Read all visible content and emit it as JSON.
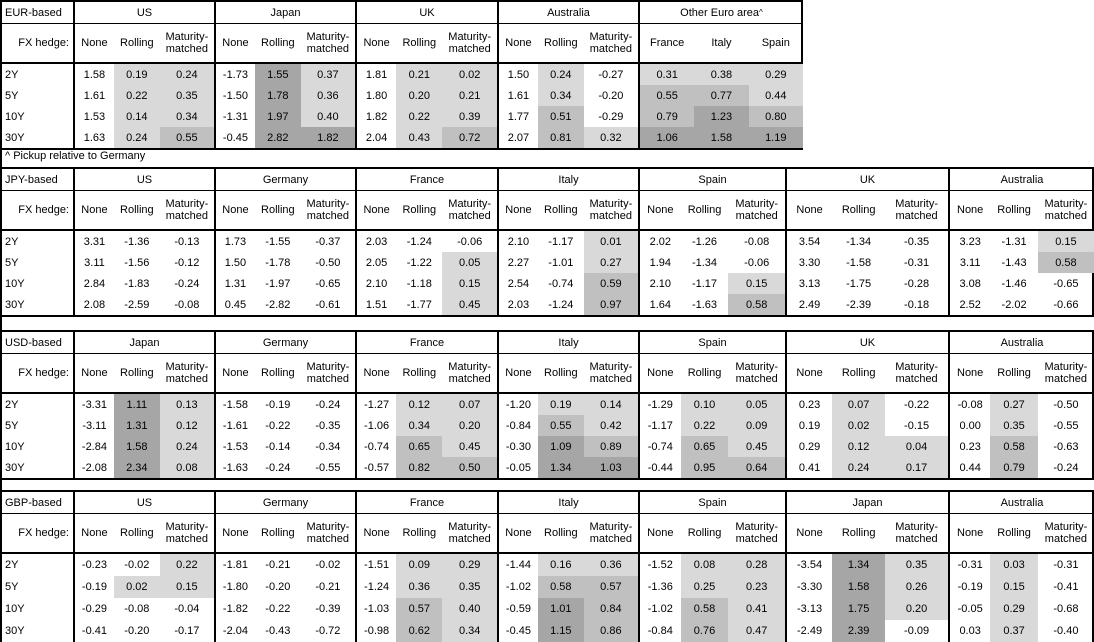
{
  "fx_hedge_label": "FX hedge:",
  "hedge_cols": [
    "None",
    "Rolling",
    "Maturity-matched"
  ],
  "tenors": [
    "2Y",
    "5Y",
    "10Y",
    "30Y"
  ],
  "footnote": "^ Pickup relative to Germany",
  "shading": {
    "light": "#d9d9d9",
    "medium": "#c0c0c0",
    "dark": "#a6a6a6"
  },
  "tables": [
    {
      "base_label": "EUR-based",
      "groups": [
        {
          "name": "US",
          "rows": [
            [
              "1.58",
              "0.19",
              "0.24"
            ],
            [
              "1.61",
              "0.22",
              "0.35"
            ],
            [
              "1.53",
              "0.14",
              "0.34"
            ],
            [
              "1.63",
              "0.24",
              "0.55"
            ]
          ]
        },
        {
          "name": "Japan",
          "rows": [
            [
              "-1.73",
              "1.55",
              "0.37"
            ],
            [
              "-1.50",
              "1.78",
              "0.36"
            ],
            [
              "-1.31",
              "1.97",
              "0.40"
            ],
            [
              "-0.45",
              "2.82",
              "1.82"
            ]
          ]
        },
        {
          "name": "UK",
          "rows": [
            [
              "1.81",
              "0.21",
              "0.02"
            ],
            [
              "1.80",
              "0.20",
              "0.21"
            ],
            [
              "1.82",
              "0.22",
              "0.39"
            ],
            [
              "2.04",
              "0.43",
              "0.72"
            ]
          ]
        },
        {
          "name": "Australia",
          "rows": [
            [
              "1.50",
              "0.24",
              "-0.27"
            ],
            [
              "1.61",
              "0.34",
              "-0.20"
            ],
            [
              "1.77",
              "0.51",
              "-0.29"
            ],
            [
              "2.07",
              "0.81",
              "0.32"
            ]
          ]
        },
        {
          "name": "Other Euro area",
          "sup": "^",
          "cols": [
            "France",
            "Italy",
            "Spain"
          ],
          "rows": [
            [
              "0.31",
              "0.38",
              "0.29"
            ],
            [
              "0.55",
              "0.77",
              "0.44"
            ],
            [
              "0.79",
              "1.23",
              "0.80"
            ],
            [
              "1.06",
              "1.58",
              "1.19"
            ]
          ]
        }
      ]
    },
    {
      "base_label": "JPY-based",
      "groups": [
        {
          "name": "US",
          "rows": [
            [
              "3.31",
              "-1.36",
              "-0.13"
            ],
            [
              "3.11",
              "-1.56",
              "-0.12"
            ],
            [
              "2.84",
              "-1.83",
              "-0.24"
            ],
            [
              "2.08",
              "-2.59",
              "-0.08"
            ]
          ]
        },
        {
          "name": "Germany",
          "rows": [
            [
              "1.73",
              "-1.55",
              "-0.37"
            ],
            [
              "1.50",
              "-1.78",
              "-0.50"
            ],
            [
              "1.31",
              "-1.97",
              "-0.65"
            ],
            [
              "0.45",
              "-2.82",
              "-0.61"
            ]
          ]
        },
        {
          "name": "France",
          "rows": [
            [
              "2.03",
              "-1.24",
              "-0.06"
            ],
            [
              "2.05",
              "-1.22",
              "0.05"
            ],
            [
              "2.10",
              "-1.18",
              "0.15"
            ],
            [
              "1.51",
              "-1.77",
              "0.45"
            ]
          ]
        },
        {
          "name": "Italy",
          "rows": [
            [
              "2.10",
              "-1.17",
              "0.01"
            ],
            [
              "2.27",
              "-1.01",
              "0.27"
            ],
            [
              "2.54",
              "-0.74",
              "0.59"
            ],
            [
              "2.03",
              "-1.24",
              "0.97"
            ]
          ]
        },
        {
          "name": "Spain",
          "rows": [
            [
              "2.02",
              "-1.26",
              "-0.08"
            ],
            [
              "1.94",
              "-1.34",
              "-0.06"
            ],
            [
              "2.10",
              "-1.17",
              "0.15"
            ],
            [
              "1.64",
              "-1.63",
              "0.58"
            ]
          ]
        },
        {
          "name": "UK",
          "rows": [
            [
              "3.54",
              "-1.34",
              "-0.35"
            ],
            [
              "3.30",
              "-1.58",
              "-0.31"
            ],
            [
              "3.13",
              "-1.75",
              "-0.28"
            ],
            [
              "2.49",
              "-2.39",
              "-0.18"
            ]
          ]
        },
        {
          "name": "Australia",
          "rows": [
            [
              "3.23",
              "-1.31",
              "0.15"
            ],
            [
              "3.11",
              "-1.43",
              "0.58"
            ],
            [
              "3.08",
              "-1.46",
              "-0.65"
            ],
            [
              "2.52",
              "-2.02",
              "-0.66"
            ]
          ]
        }
      ]
    },
    {
      "base_label": "USD-based",
      "groups": [
        {
          "name": "Japan",
          "rows": [
            [
              "-3.31",
              "1.11",
              "0.13"
            ],
            [
              "-3.11",
              "1.31",
              "0.12"
            ],
            [
              "-2.84",
              "1.58",
              "0.24"
            ],
            [
              "-2.08",
              "2.34",
              "0.08"
            ]
          ]
        },
        {
          "name": "Germany",
          "rows": [
            [
              "-1.58",
              "-0.19",
              "-0.24"
            ],
            [
              "-1.61",
              "-0.22",
              "-0.35"
            ],
            [
              "-1.53",
              "-0.14",
              "-0.34"
            ],
            [
              "-1.63",
              "-0.24",
              "-0.55"
            ]
          ]
        },
        {
          "name": "France",
          "rows": [
            [
              "-1.27",
              "0.12",
              "0.07"
            ],
            [
              "-1.06",
              "0.34",
              "0.20"
            ],
            [
              "-0.74",
              "0.65",
              "0.45"
            ],
            [
              "-0.57",
              "0.82",
              "0.50"
            ]
          ]
        },
        {
          "name": "Italy",
          "rows": [
            [
              "-1.20",
              "0.19",
              "0.14"
            ],
            [
              "-0.84",
              "0.55",
              "0.42"
            ],
            [
              "-0.30",
              "1.09",
              "0.89"
            ],
            [
              "-0.05",
              "1.34",
              "1.03"
            ]
          ]
        },
        {
          "name": "Spain",
          "rows": [
            [
              "-1.29",
              "0.10",
              "0.05"
            ],
            [
              "-1.17",
              "0.22",
              "0.09"
            ],
            [
              "-0.74",
              "0.65",
              "0.45"
            ],
            [
              "-0.44",
              "0.95",
              "0.64"
            ]
          ]
        },
        {
          "name": "UK",
          "rows": [
            [
              "0.23",
              "0.07",
              "-0.22"
            ],
            [
              "0.19",
              "0.02",
              "-0.15"
            ],
            [
              "0.29",
              "0.12",
              "0.04"
            ],
            [
              "0.41",
              "0.24",
              "0.17"
            ]
          ]
        },
        {
          "name": "Australia",
          "rows": [
            [
              "-0.08",
              "0.27",
              "-0.50"
            ],
            [
              "0.00",
              "0.35",
              "-0.55"
            ],
            [
              "0.23",
              "0.58",
              "-0.63"
            ],
            [
              "0.44",
              "0.79",
              "-0.24"
            ]
          ]
        }
      ]
    },
    {
      "base_label": "GBP-based",
      "groups": [
        {
          "name": "US",
          "rows": [
            [
              "-0.23",
              "-0.02",
              "0.22"
            ],
            [
              "-0.19",
              "0.02",
              "0.15"
            ],
            [
              "-0.29",
              "-0.08",
              "-0.04"
            ],
            [
              "-0.41",
              "-0.20",
              "-0.17"
            ]
          ]
        },
        {
          "name": "Germany",
          "rows": [
            [
              "-1.81",
              "-0.21",
              "-0.02"
            ],
            [
              "-1.80",
              "-0.20",
              "-0.21"
            ],
            [
              "-1.82",
              "-0.22",
              "-0.39"
            ],
            [
              "-2.04",
              "-0.43",
              "-0.72"
            ]
          ]
        },
        {
          "name": "France",
          "rows": [
            [
              "-1.51",
              "0.09",
              "0.29"
            ],
            [
              "-1.24",
              "0.36",
              "0.35"
            ],
            [
              "-1.03",
              "0.57",
              "0.40"
            ],
            [
              "-0.98",
              "0.62",
              "0.34"
            ]
          ]
        },
        {
          "name": "Italy",
          "rows": [
            [
              "-1.44",
              "0.16",
              "0.36"
            ],
            [
              "-1.02",
              "0.58",
              "0.57"
            ],
            [
              "-0.59",
              "1.01",
              "0.84"
            ],
            [
              "-0.45",
              "1.15",
              "0.86"
            ]
          ]
        },
        {
          "name": "Spain",
          "rows": [
            [
              "-1.52",
              "0.08",
              "0.28"
            ],
            [
              "-1.36",
              "0.25",
              "0.23"
            ],
            [
              "-1.02",
              "0.58",
              "0.41"
            ],
            [
              "-0.84",
              "0.76",
              "0.47"
            ]
          ]
        },
        {
          "name": "Japan",
          "rows": [
            [
              "-3.54",
              "1.34",
              "0.35"
            ],
            [
              "-3.30",
              "1.58",
              "0.26"
            ],
            [
              "-3.13",
              "1.75",
              "0.20"
            ],
            [
              "-2.49",
              "2.39",
              "-0.09"
            ]
          ]
        },
        {
          "name": "Australia",
          "rows": [
            [
              "-0.31",
              "0.03",
              "-0.31"
            ],
            [
              "-0.19",
              "0.15",
              "-0.41"
            ],
            [
              "-0.05",
              "0.29",
              "-0.68"
            ],
            [
              "0.03",
              "0.37",
              "-0.40"
            ]
          ]
        }
      ]
    }
  ]
}
